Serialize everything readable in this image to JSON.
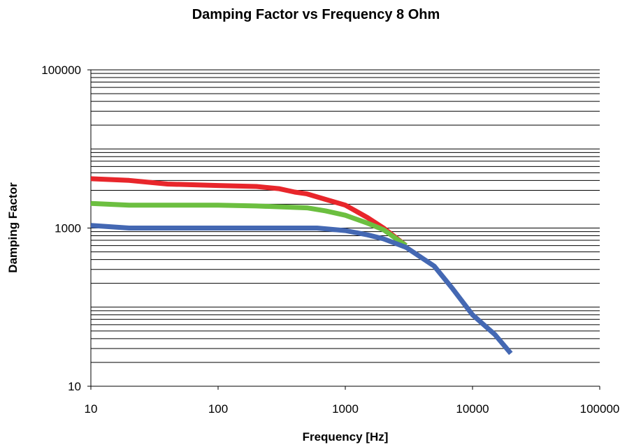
{
  "chart_data": {
    "type": "line",
    "title": "Damping Factor vs Frequency 8 Ohm",
    "xlabel": "Frequency [Hz]",
    "ylabel": "Damping Factor",
    "x_scale": "log",
    "y_scale": "log",
    "xlim": [
      10,
      100000
    ],
    "ylim": [
      10,
      100000
    ],
    "x_ticks": [
      "10",
      "100",
      "1000",
      "10000",
      "100000"
    ],
    "y_ticks": [
      "10",
      "1000",
      "100000"
    ],
    "grid": "horizontal major and minor",
    "legend": "none",
    "series": [
      {
        "color": "#e8262b",
        "points": [
          [
            10,
            4200
          ],
          [
            20,
            4000
          ],
          [
            40,
            3600
          ],
          [
            100,
            3450
          ],
          [
            200,
            3350
          ],
          [
            300,
            3150
          ],
          [
            400,
            2850
          ],
          [
            500,
            2700
          ],
          [
            700,
            2300
          ],
          [
            1000,
            1950
          ],
          [
            1500,
            1350
          ],
          [
            2000,
            1000
          ],
          [
            3000,
            600
          ]
        ]
      },
      {
        "color": "#6cbf40",
        "points": [
          [
            10,
            2050
          ],
          [
            20,
            1950
          ],
          [
            50,
            1950
          ],
          [
            100,
            1950
          ],
          [
            200,
            1900
          ],
          [
            500,
            1800
          ],
          [
            700,
            1650
          ],
          [
            1000,
            1450
          ],
          [
            1500,
            1150
          ],
          [
            2000,
            950
          ],
          [
            3000,
            600
          ]
        ]
      },
      {
        "color": "#4468b3",
        "points": [
          [
            10,
            1080
          ],
          [
            20,
            1000
          ],
          [
            100,
            1000
          ],
          [
            300,
            1000
          ],
          [
            600,
            1000
          ],
          [
            1000,
            930
          ],
          [
            1500,
            820
          ],
          [
            2000,
            730
          ],
          [
            3000,
            570
          ],
          [
            5000,
            330
          ],
          [
            7000,
            170
          ],
          [
            10000,
            80
          ],
          [
            15000,
            45
          ],
          [
            20000,
            26
          ]
        ]
      }
    ]
  }
}
